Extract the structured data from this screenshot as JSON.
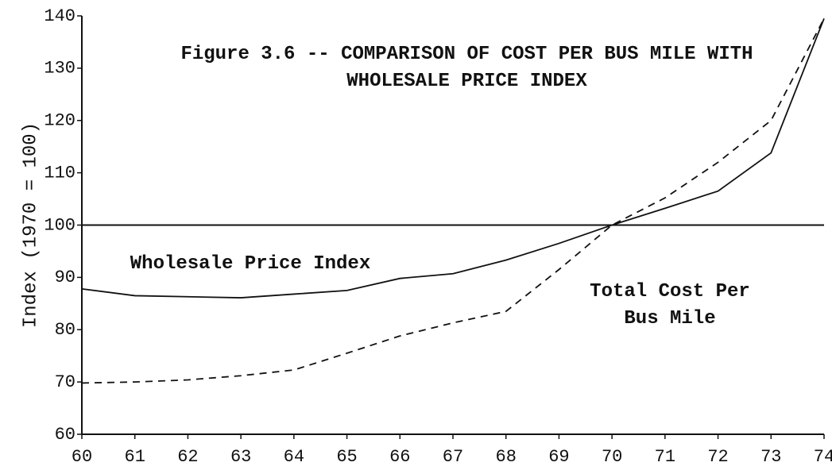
{
  "chart_data": {
    "type": "line",
    "title": "Figure 3.6 -- COMPARISON OF COST PER BUS MILE WITH WHOLESALE PRICE INDEX",
    "y_label": "Index (1970 = 100)",
    "x": [
      60,
      61,
      62,
      63,
      64,
      65,
      66,
      67,
      68,
      69,
      70,
      71,
      72,
      73,
      74
    ],
    "series": [
      {
        "name": "Wholesale Price Index",
        "color": "#111111",
        "dashed": false,
        "values": [
          87.8,
          86.5,
          86.3,
          86.1,
          86.8,
          87.5,
          89.8,
          90.7,
          93.3,
          96.5,
          100,
          103.2,
          106.5,
          113.8,
          139.5
        ]
      },
      {
        "name": "Total Cost Per Bus Mile",
        "color": "#111111",
        "dashed": true,
        "values": [
          69.8,
          70,
          70.4,
          71.2,
          72.3,
          75.5,
          78.8,
          81.3,
          83.5,
          91.5,
          100,
          105.2,
          112,
          120,
          139.5
        ]
      }
    ],
    "reference_line": 100,
    "xlim": [
      60,
      74
    ],
    "ylim": [
      60,
      140
    ],
    "xticks": [
      60,
      61,
      62,
      63,
      64,
      65,
      66,
      67,
      68,
      69,
      70,
      71,
      72,
      73,
      74
    ],
    "yticks": [
      60,
      70,
      80,
      90,
      100,
      110,
      120,
      130,
      140
    ],
    "grid": false
  }
}
